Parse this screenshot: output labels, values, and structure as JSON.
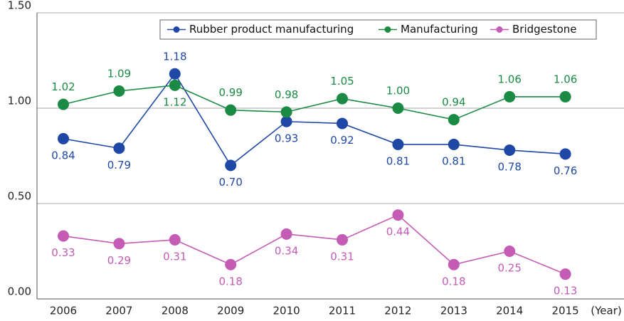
{
  "chart_data": {
    "type": "line",
    "categories": [
      "2006",
      "2007",
      "2008",
      "2009",
      "2010",
      "2011",
      "2012",
      "2013",
      "2014",
      "2015"
    ],
    "xlabel": "(Year)",
    "ylim": [
      0,
      1.5
    ],
    "yticks": [
      {
        "value": 0,
        "label": "0.00"
      },
      {
        "value": 0.5,
        "label": "0.50"
      },
      {
        "value": 1,
        "label": "1.00"
      },
      {
        "value": 1.5,
        "label": "1.50"
      }
    ],
    "grid": true,
    "legend": "top-right",
    "series": [
      {
        "name": "Rubber product manufacturing",
        "color": "#1f48a6",
        "values": [
          0.84,
          0.79,
          1.18,
          0.7,
          0.93,
          0.92,
          0.81,
          0.81,
          0.78,
          0.76
        ],
        "value_labels": [
          "0.84",
          "0.79",
          "1.18",
          "0.70",
          "0.93",
          "0.92",
          "0.81",
          "0.81",
          "0.78",
          "0.76"
        ]
      },
      {
        "name": "Manufacturing",
        "color": "#1b8a45",
        "values": [
          1.02,
          1.09,
          1.12,
          0.99,
          0.98,
          1.05,
          1.0,
          0.94,
          1.06,
          1.06
        ],
        "value_labels": [
          "1.02",
          "1.09",
          "1.12",
          "0.99",
          "0.98",
          "1.05",
          "1.00",
          "0.94",
          "1.06",
          "1.06"
        ]
      },
      {
        "name": "Bridgestone",
        "color": "#c45bb4",
        "values": [
          0.33,
          0.29,
          0.31,
          0.18,
          0.34,
          0.31,
          0.44,
          0.18,
          0.25,
          0.13
        ],
        "value_labels": [
          "0.33",
          "0.29",
          "0.31",
          "0.18",
          "0.34",
          "0.31",
          "0.44",
          "0.18",
          "0.25",
          "0.13"
        ]
      }
    ]
  }
}
